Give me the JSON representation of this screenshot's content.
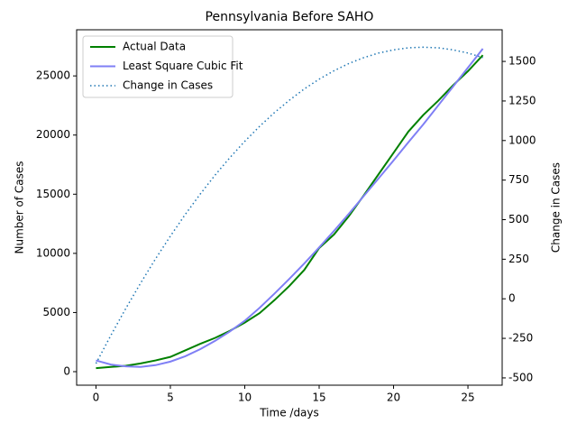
{
  "chart_data": {
    "type": "line",
    "title": "Pennsylvania Before SAHO",
    "xlabel": "Time /days",
    "ylabel": "Number of Cases",
    "y2label": "Change in Cases",
    "x": [
      0,
      1,
      2,
      3,
      4,
      5,
      6,
      7,
      8,
      9,
      10,
      11,
      12,
      13,
      14,
      15,
      16,
      17,
      18,
      19,
      20,
      21,
      22,
      23,
      24,
      25,
      26
    ],
    "series": [
      {
        "name": "Actual Data",
        "color": "#008000",
        "linestyle": "solid",
        "axis": "y",
        "values": [
          300,
          400,
          500,
          700,
          950,
          1250,
          1800,
          2350,
          2850,
          3450,
          4150,
          4950,
          6050,
          7250,
          8600,
          10450,
          11600,
          13150,
          14900,
          16700,
          18500,
          20300,
          21700,
          22900,
          24200,
          25400,
          26750
        ]
      },
      {
        "name": "Least Square Cubic Fit",
        "color": "#7f7ff5",
        "linestyle": "solid",
        "axis": "y",
        "values": [
          950,
          600,
          450,
          400,
          550,
          850,
          1300,
          1900,
          2600,
          3400,
          4300,
          5400,
          6600,
          7850,
          9150,
          10500,
          11900,
          13350,
          14850,
          16350,
          17850,
          19400,
          20900,
          22500,
          24100,
          25700,
          27300
        ]
      },
      {
        "name": "Change in Cases",
        "color": "#1f77b4",
        "linestyle": "dotted",
        "axis": "y2",
        "values": [
          -409,
          -231,
          -62,
          99,
          252,
          396,
          533,
          661,
          781,
          892,
          995,
          1090,
          1177,
          1255,
          1326,
          1388,
          1441,
          1487,
          1524,
          1553,
          1573,
          1586,
          1590,
          1586,
          1573,
          1553,
          1524
        ]
      }
    ],
    "xlim": [
      -1.3,
      27.3
    ],
    "xticks": [
      0,
      5,
      10,
      15,
      20,
      25
    ],
    "ylim": [
      -1143,
      28900
    ],
    "yticks": [
      0,
      5000,
      10000,
      15000,
      20000,
      25000
    ],
    "y2lim": [
      -546,
      1700
    ],
    "y2ticks": [
      -500,
      -250,
      0,
      250,
      500,
      750,
      1000,
      1250,
      1500
    ],
    "legend": "upper left",
    "grid": false
  }
}
